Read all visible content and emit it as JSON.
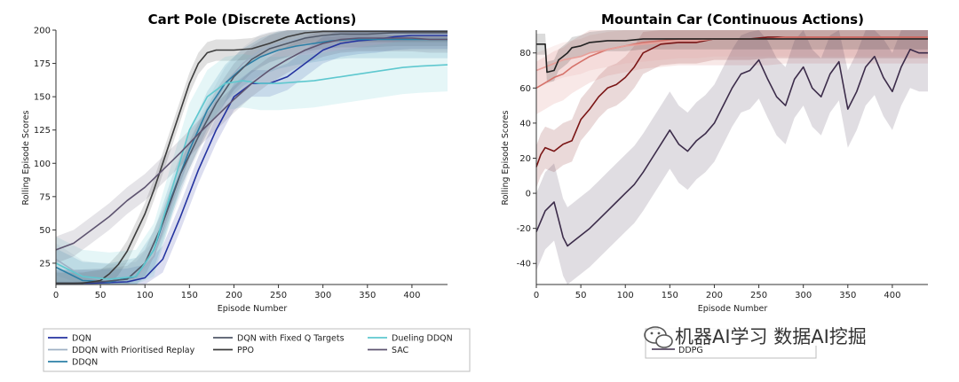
{
  "chart_data": [
    {
      "type": "line",
      "title": "Cart Pole (Discrete Actions)",
      "xlabel": "Episode Number",
      "ylabel": "Rolling Episode Scores",
      "xlim": [
        0,
        440
      ],
      "ylim": [
        9,
        200
      ],
      "xticks": [
        0,
        50,
        100,
        150,
        200,
        250,
        300,
        350,
        400
      ],
      "yticks": [
        25,
        50,
        75,
        100,
        125,
        150,
        175,
        200
      ],
      "grid": false,
      "series": [
        {
          "name": "DQN",
          "color": "#2433a0",
          "x": [
            0,
            40,
            80,
            100,
            120,
            140,
            160,
            180,
            200,
            220,
            240,
            260,
            280,
            300,
            320,
            340,
            360,
            380,
            400,
            420,
            440
          ],
          "y": [
            10,
            10,
            11,
            14,
            28,
            60,
            95,
            125,
            150,
            160,
            160,
            165,
            175,
            185,
            190,
            192,
            193,
            195,
            196,
            196,
            196
          ],
          "band": 10
        },
        {
          "name": "DDQN with Prioritised Replay",
          "color": "#9fb0c4",
          "x": [
            0,
            30,
            60,
            90,
            110,
            130,
            150,
            170,
            190,
            210,
            230,
            250,
            270,
            290,
            310,
            330,
            350,
            370,
            390,
            410,
            440
          ],
          "y": [
            28,
            15,
            12,
            14,
            30,
            70,
            105,
            135,
            160,
            175,
            185,
            190,
            193,
            195,
            196,
            197,
            197,
            197,
            197,
            197,
            197
          ],
          "band": 12
        },
        {
          "name": "DDQN",
          "color": "#2b7fa6",
          "x": [
            0,
            30,
            60,
            90,
            110,
            130,
            150,
            170,
            190,
            210,
            230,
            250,
            270,
            290,
            310,
            330,
            350,
            380,
            410,
            440
          ],
          "y": [
            22,
            12,
            11,
            15,
            35,
            75,
            110,
            140,
            160,
            172,
            180,
            185,
            188,
            190,
            192,
            193,
            193,
            193,
            193,
            193
          ],
          "band": 14
        },
        {
          "name": "DQN with Fixed Q Targets",
          "color": "#505868",
          "x": [
            0,
            20,
            50,
            80,
            100,
            120,
            140,
            160,
            180,
            200,
            220,
            240,
            260,
            280,
            300,
            320,
            350,
            380,
            410,
            440
          ],
          "y": [
            10,
            10,
            11,
            13,
            25,
            55,
            92,
            120,
            145,
            165,
            178,
            186,
            190,
            194,
            196,
            197,
            197,
            198,
            198,
            198
          ],
          "band": 10
        },
        {
          "name": "PPO",
          "color": "#3c3c3c",
          "x": [
            0,
            10,
            30,
            50,
            60,
            70,
            80,
            90,
            100,
            110,
            120,
            130,
            140,
            150,
            160,
            170,
            180,
            200,
            220,
            240,
            260,
            280,
            300,
            440
          ],
          "y": [
            10,
            10,
            10,
            12,
            17,
            24,
            34,
            48,
            62,
            80,
            100,
            120,
            140,
            160,
            175,
            183,
            185,
            185,
            186,
            190,
            195,
            198,
            199,
            199
          ],
          "band": 8
        },
        {
          "name": "Dueling DDQN",
          "color": "#5ec8cf",
          "x": [
            0,
            30,
            60,
            90,
            110,
            130,
            150,
            170,
            190,
            210,
            230,
            250,
            270,
            290,
            310,
            330,
            350,
            370,
            390,
            410,
            440
          ],
          "y": [
            25,
            15,
            13,
            15,
            35,
            80,
            125,
            150,
            160,
            162,
            160,
            160,
            161,
            162,
            164,
            166,
            168,
            170,
            172,
            173,
            174
          ],
          "band": 20
        },
        {
          "name": "SAC",
          "color": "#5e5470",
          "x": [
            0,
            20,
            40,
            60,
            80,
            100,
            120,
            140,
            160,
            180,
            200,
            220,
            240,
            260,
            280,
            300,
            320,
            340,
            360,
            380,
            400,
            420,
            440
          ],
          "y": [
            35,
            40,
            50,
            60,
            72,
            82,
            95,
            108,
            122,
            135,
            148,
            160,
            170,
            178,
            185,
            190,
            193,
            194,
            194,
            194,
            194,
            193,
            193
          ],
          "band": 10
        }
      ]
    },
    {
      "type": "line",
      "title": "Mountain Car (Continuous Actions)",
      "xlabel": "Episode Number",
      "ylabel": "Rolling Episode Scores",
      "xlim": [
        0,
        440
      ],
      "ylim": [
        -52,
        93
      ],
      "xticks": [
        0,
        50,
        100,
        150,
        200,
        250,
        300,
        350,
        400
      ],
      "yticks": [
        -40,
        -20,
        0,
        20,
        40,
        60,
        80
      ],
      "grid": false,
      "series": [
        {
          "color": "#7a1515",
          "x": [
            0,
            5,
            10,
            20,
            30,
            40,
            50,
            60,
            70,
            80,
            90,
            100,
            110,
            120,
            140,
            160,
            180,
            200,
            220,
            240,
            260,
            280,
            300,
            320,
            340,
            360,
            380,
            400,
            420,
            440
          ],
          "y": [
            15,
            22,
            26,
            24,
            28,
            30,
            42,
            48,
            55,
            60,
            62,
            66,
            72,
            80,
            85,
            86,
            86,
            88,
            88,
            88,
            89,
            89,
            89,
            89,
            89,
            89,
            89,
            89,
            89,
            89
          ],
          "band": 12
        },
        {
          "color": "#d5726a",
          "x": [
            0,
            10,
            20,
            30,
            40,
            50,
            60,
            70,
            80,
            90,
            100,
            110,
            120,
            140,
            160,
            180,
            200,
            220,
            240,
            260,
            280,
            300,
            320,
            340,
            360,
            380,
            400,
            420,
            440
          ],
          "y": [
            60,
            63,
            66,
            68,
            72,
            75,
            78,
            80,
            82,
            83,
            84,
            85,
            86,
            87,
            88,
            88,
            88,
            88,
            88,
            88,
            89,
            89,
            89,
            89,
            89,
            89,
            89,
            89,
            89
          ],
          "band": 15
        },
        {
          "color": "#e8a09a",
          "x": [
            0,
            10,
            20,
            30,
            40,
            50,
            60,
            70,
            80,
            100,
            120,
            140,
            160,
            180,
            200,
            220,
            240,
            260,
            280,
            300,
            320,
            340,
            360,
            380,
            400,
            420,
            440
          ],
          "y": [
            70,
            72,
            74,
            76,
            77,
            78,
            80,
            81,
            82,
            84,
            85,
            86,
            87,
            87,
            88,
            88,
            88,
            88,
            88,
            88,
            88,
            88,
            88,
            88,
            88,
            88,
            88
          ],
          "band": 10
        },
        {
          "color": "#222222",
          "x": [
            0,
            10,
            12,
            20,
            25,
            30,
            35,
            40,
            50,
            60,
            80,
            100,
            120,
            150,
            200,
            250,
            300,
            350,
            400,
            440
          ],
          "y": [
            85,
            85,
            69,
            70,
            76,
            78,
            80,
            83,
            84,
            86,
            87,
            87,
            88,
            88,
            88,
            88,
            88,
            88,
            88,
            88
          ],
          "band": 6
        },
        {
          "color": "#3c2c4a",
          "x": [
            0,
            10,
            20,
            25,
            30,
            35,
            40,
            50,
            60,
            70,
            80,
            90,
            100,
            110,
            120,
            130,
            140,
            150,
            160,
            170,
            180,
            190,
            200,
            210,
            220,
            230,
            240,
            250,
            260,
            270,
            280,
            290,
            300,
            310,
            320,
            330,
            340,
            350,
            360,
            370,
            380,
            390,
            400,
            410,
            420,
            430,
            440
          ],
          "y": [
            -22,
            -10,
            -5,
            -15,
            -25,
            -30,
            -28,
            -24,
            -20,
            -15,
            -10,
            -5,
            0,
            5,
            12,
            20,
            28,
            36,
            28,
            24,
            30,
            34,
            40,
            50,
            60,
            68,
            70,
            76,
            65,
            55,
            50,
            65,
            72,
            60,
            55,
            68,
            75,
            48,
            58,
            72,
            78,
            66,
            58,
            72,
            82,
            80,
            80
          ],
          "band": 22
        }
      ]
    }
  ],
  "legends": [
    [
      "DQN",
      "DDQN with Prioritised Replay",
      "DDQN",
      "DQN with Fixed Q Targets",
      "PPO",
      "Dueling DDQN",
      "SAC"
    ],
    [
      "DDPG"
    ]
  ],
  "watermark": "机器AI学习 数据AI挖掘"
}
